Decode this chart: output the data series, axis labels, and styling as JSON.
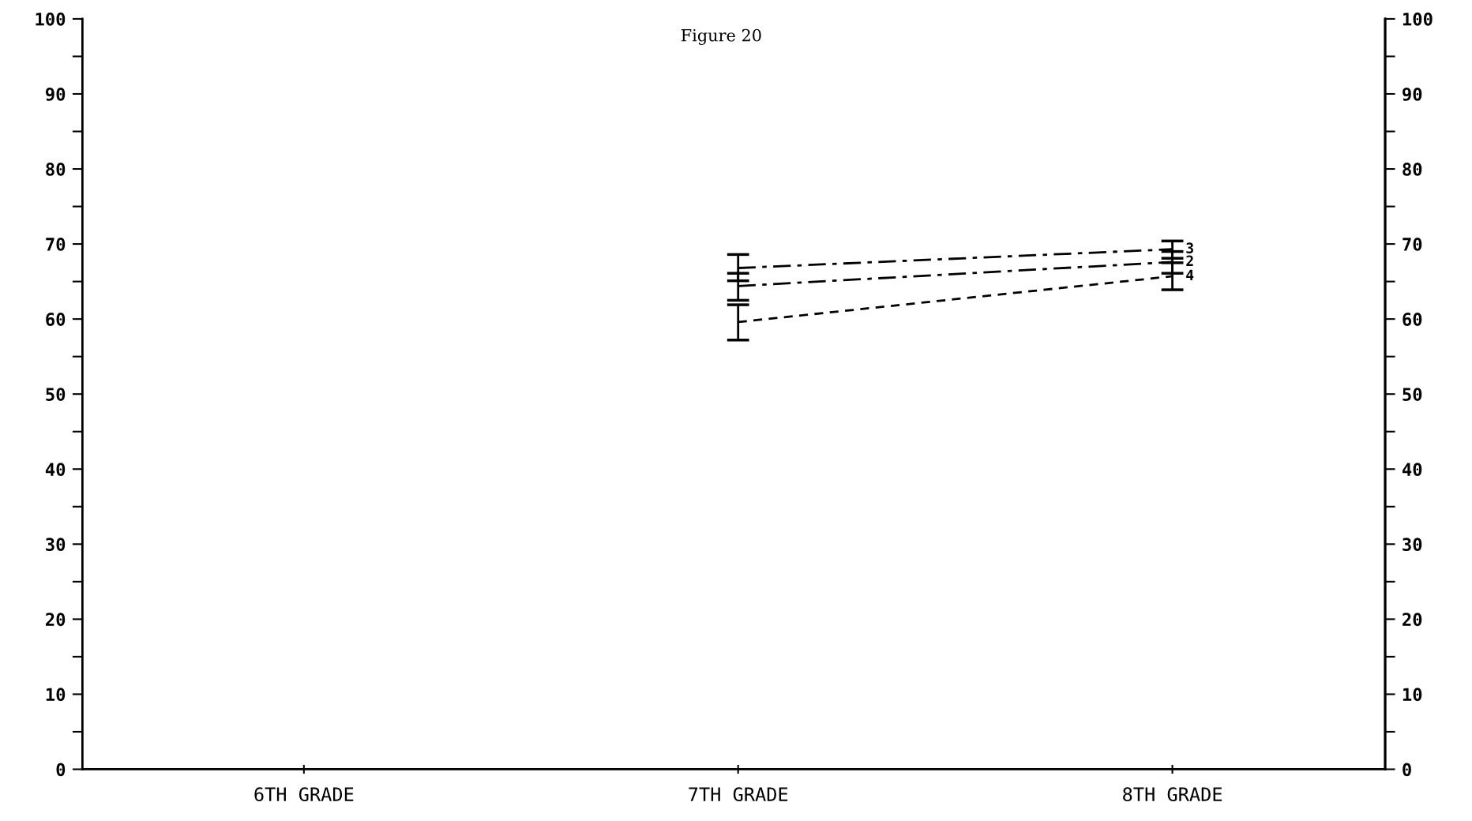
{
  "chart_data": {
    "type": "line",
    "title": "Figure 20",
    "categories": [
      "6TH GRADE",
      "7TH GRADE",
      "8TH GRADE"
    ],
    "series": [
      {
        "name": "3",
        "color": "#000000",
        "line_style": "dashdot",
        "values": [
          null,
          66.8,
          69.3
        ],
        "errors": [
          null,
          [
            65.1,
            68.6
          ],
          [
            68.1,
            70.4
          ]
        ]
      },
      {
        "name": "2",
        "color": "#000000",
        "line_style": "dashdot",
        "values": [
          null,
          64.4,
          67.6
        ],
        "errors": [
          null,
          [
            62.5,
            66.1
          ],
          [
            66.1,
            69.0
          ]
        ]
      },
      {
        "name": "4",
        "color": "#000000",
        "line_style": "dashed",
        "values": [
          null,
          59.6,
          65.7
        ],
        "errors": [
          null,
          [
            57.2,
            61.9
          ],
          [
            63.9,
            67.5
          ]
        ]
      }
    ],
    "ylim": [
      0,
      100
    ],
    "yticks": [
      0,
      {
        "value": 5,
        "label": null
      },
      10,
      {
        "value": 15,
        "label": null
      },
      20,
      {
        "value": 25,
        "label": null
      },
      30,
      {
        "value": 35,
        "label": null
      },
      40,
      {
        "value": 45,
        "label": null
      },
      50,
      {
        "value": 55,
        "label": null
      },
      60,
      {
        "value": 65,
        "label": null
      },
      70,
      {
        "value": 75,
        "label": null
      },
      80,
      {
        "value": 85,
        "label": null
      },
      90,
      {
        "value": 95,
        "label": null
      },
      100
    ],
    "y2lim": [
      0,
      100
    ],
    "y2ticks": [
      0,
      {
        "value": 5,
        "label": null
      },
      10,
      {
        "value": 15,
        "label": null
      },
      20,
      {
        "value": 25,
        "label": null
      },
      30,
      {
        "value": 35,
        "label": null
      },
      40,
      {
        "value": 45,
        "label": null
      },
      50,
      {
        "value": 55,
        "label": null
      },
      60,
      {
        "value": 65,
        "label": null
      },
      70,
      {
        "value": 75,
        "label": null
      },
      80,
      {
        "value": 85,
        "label": null
      },
      90,
      {
        "value": 95,
        "label": null
      },
      100
    ],
    "grid": false,
    "legend": false,
    "marker": "none"
  }
}
